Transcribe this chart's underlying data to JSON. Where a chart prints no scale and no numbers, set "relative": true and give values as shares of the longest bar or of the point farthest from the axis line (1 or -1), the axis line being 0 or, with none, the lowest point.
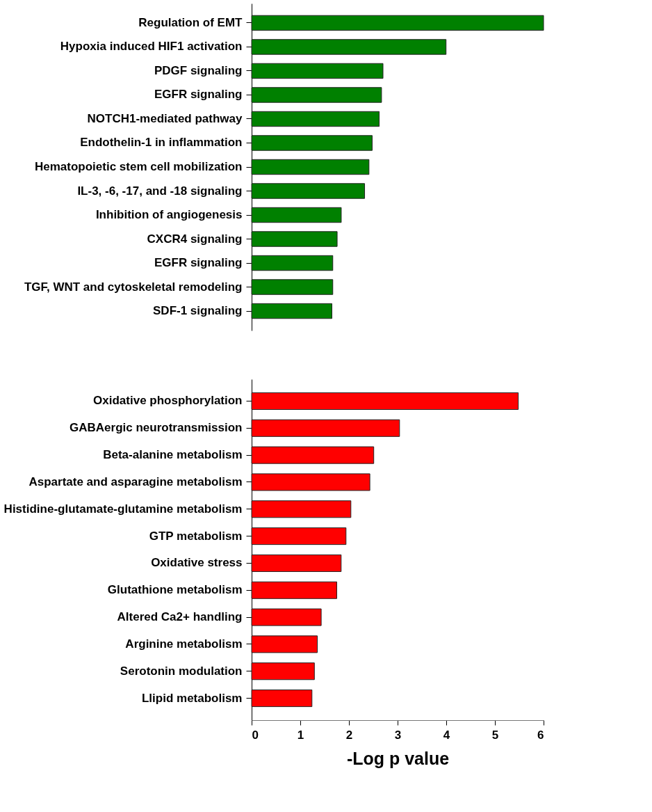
{
  "chart_data": [
    {
      "type": "bar",
      "orientation": "horizontal",
      "relative": true,
      "categories": [
        "Regulation of EMT",
        "Hypoxia induced HIF1 activation",
        "PDGF signaling",
        "EGFR signaling",
        "NOTCH1-mediated pathway",
        "Endothelin-1 in inflammation",
        "Hematopoietic stem cell mobilization",
        "IL-3, -6, -17, and -18 signaling",
        "Inhibition of angiogenesis",
        "CXCR4 signaling",
        "EGFR signaling",
        "TGF, WNT and cytoskeletal remodeling",
        "SDF-1 signaling"
      ],
      "series": [
        {
          "color": "#008000",
          "values": [
            1,
            0.666,
            0.45,
            0.445,
            0.437,
            0.413,
            0.402,
            0.387,
            0.307,
            0.293,
            0.278,
            0.278,
            0.275
          ]
        }
      ]
    },
    {
      "type": "bar",
      "orientation": "horizontal",
      "xlabel": "-Log p value",
      "xlim": [
        0,
        6
      ],
      "xticks": [
        0,
        1,
        2,
        3,
        4,
        5,
        6
      ],
      "categories": [
        "Oxidative phosphorylation",
        "GABAergic neurotransmission",
        "Beta-alanine metabolism",
        "Aspartate and asparagine metabolism",
        "Histidine-glutamate-glutamine metabolism",
        "GTP metabolism",
        "Oxidative stress",
        "Glutathione metabolism",
        "Altered Ca2+ handling",
        "Arginine metabolism",
        "Serotonin modulation",
        "Llipid metabolism"
      ],
      "series": [
        {
          "color": "#ff0000",
          "values": [
            5.48,
            3.04,
            2.51,
            2.43,
            2.04,
            1.94,
            1.84,
            1.75,
            1.43,
            1.35,
            1.29,
            1.24
          ]
        }
      ]
    }
  ]
}
